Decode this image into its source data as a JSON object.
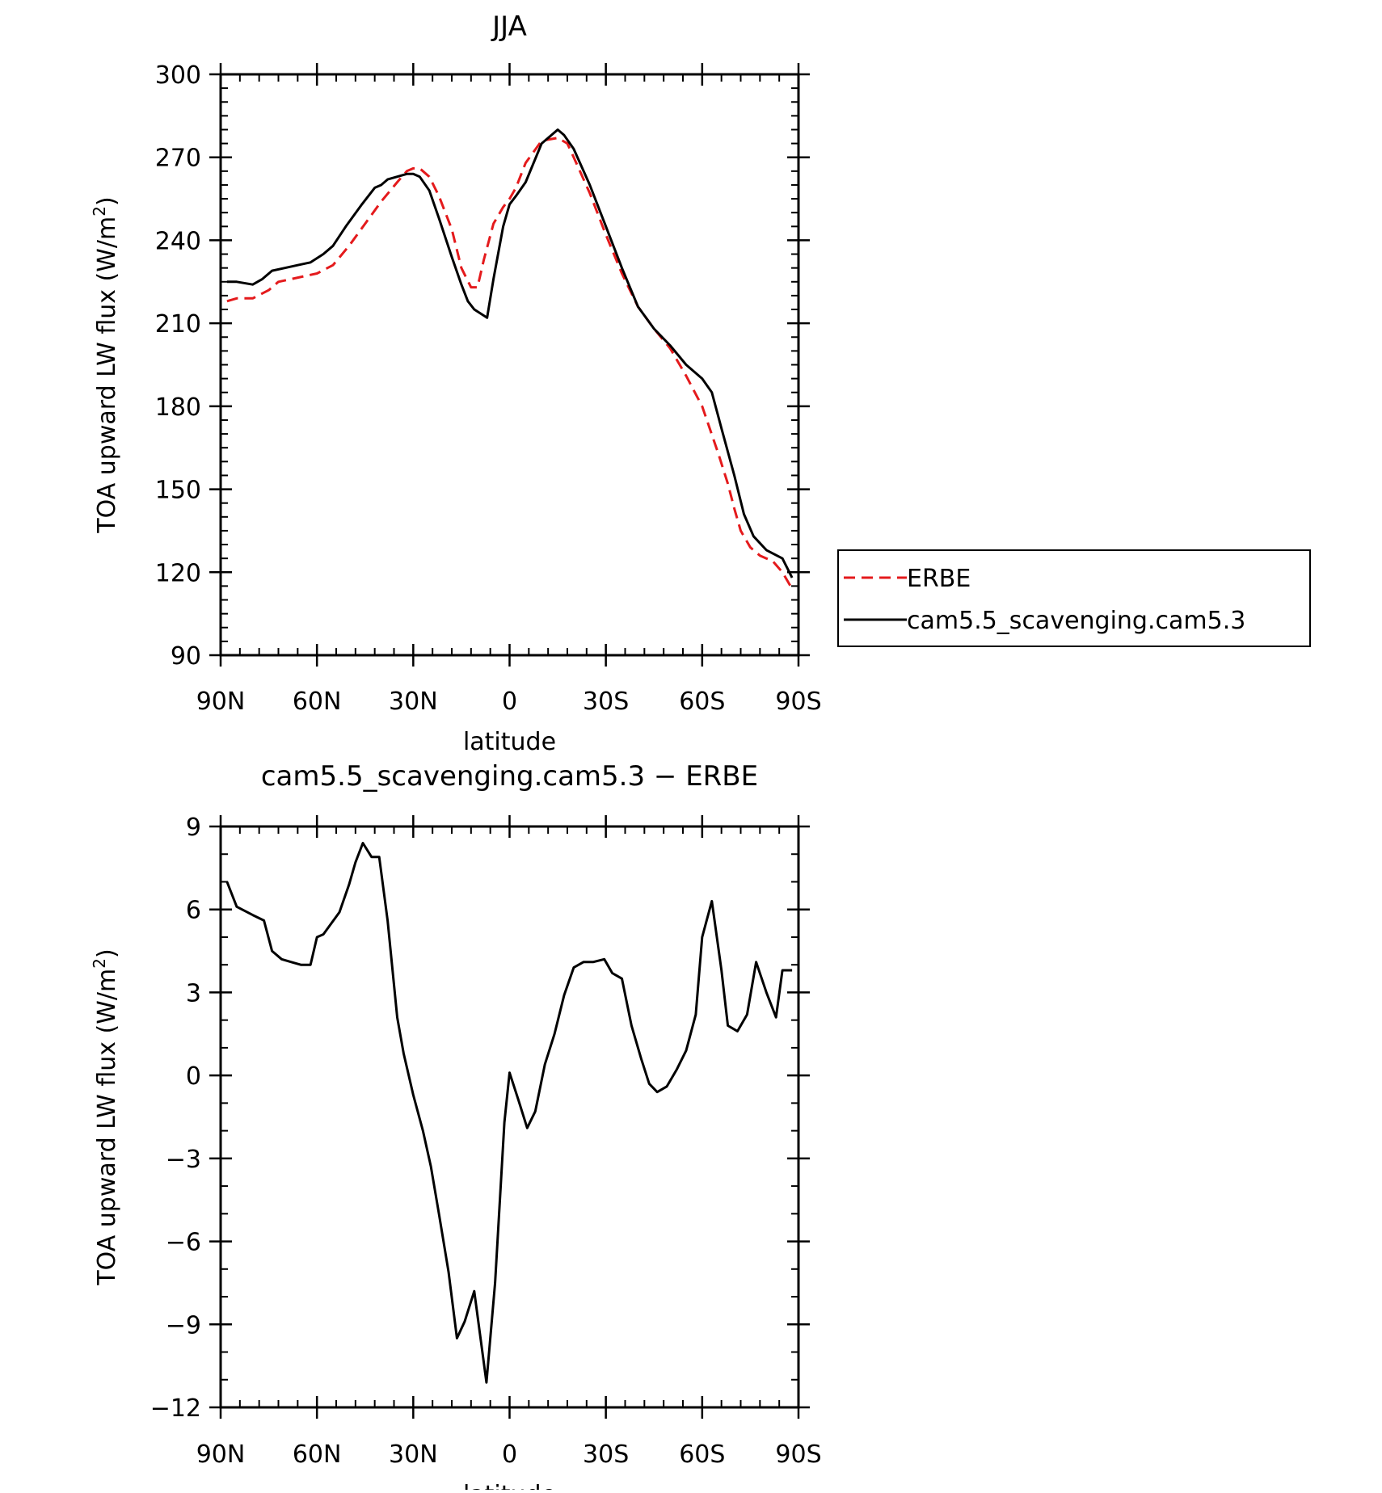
{
  "chart_data": [
    {
      "type": "line",
      "title": "JJA",
      "xlabel": "latitude",
      "ylabel": "TOA upward LW flux (W/m",
      "ylabel_sup": "2",
      "ylabel_close": ")",
      "xlim": [
        90,
        -90
      ],
      "ylim": [
        90,
        300
      ],
      "xticks": [
        90,
        60,
        30,
        0,
        -30,
        -60,
        -90
      ],
      "xtick_labels": [
        "90N",
        "60N",
        "30N",
        "0",
        "30S",
        "60S",
        "90S"
      ],
      "yticks": [
        90,
        120,
        150,
        180,
        210,
        240,
        270,
        300
      ],
      "ytick_labels": [
        "90",
        "120",
        "150",
        "180",
        "210",
        "240",
        "270",
        "300"
      ],
      "grid": false,
      "legend_position": "right",
      "series": [
        {
          "name": "ERBE",
          "color": "#e41a1c",
          "dash": "dashed",
          "x": [
            88,
            85,
            80,
            75,
            72,
            68,
            64,
            60,
            55,
            50,
            45,
            40,
            35,
            32,
            30,
            28,
            25,
            22,
            18,
            15,
            12,
            10,
            8,
            5,
            2,
            0,
            -2,
            -5,
            -10,
            -15,
            -18,
            -20,
            -25,
            -30,
            -35,
            -40,
            -45,
            -50,
            -55,
            -60,
            -65,
            -68,
            -70,
            -72,
            -75,
            -78,
            -80,
            -82,
            -85,
            -88
          ],
          "y": [
            218,
            219,
            219,
            222,
            225,
            226,
            227,
            228,
            231,
            238,
            246,
            254,
            261,
            265,
            266,
            266,
            263,
            256,
            244,
            230,
            223,
            223,
            233,
            246,
            252,
            255,
            259,
            268,
            276,
            277,
            275,
            270,
            257,
            242,
            228,
            216,
            208,
            201,
            191,
            180,
            163,
            152,
            143,
            135,
            129,
            126,
            125,
            124,
            120,
            114
          ]
        },
        {
          "name": "cam5.5_scavenging.cam5.3",
          "color": "#000000",
          "dash": "solid",
          "x": [
            88,
            85,
            80,
            77,
            74,
            70,
            66,
            62,
            58,
            55,
            51,
            46,
            42,
            40,
            38,
            35,
            32,
            30,
            28,
            25,
            22,
            18,
            15,
            13,
            11,
            7,
            5,
            2,
            0,
            -2,
            -5,
            -10,
            -15,
            -17,
            -20,
            -25,
            -30,
            -35,
            -40,
            -45,
            -50,
            -55,
            -60,
            -63,
            -66,
            -70,
            -73,
            -76,
            -80,
            -85,
            -88
          ],
          "y": [
            225,
            225,
            224,
            226,
            229,
            230,
            231,
            232,
            235,
            238,
            245,
            253,
            259,
            260,
            262,
            263,
            264,
            264,
            263,
            258,
            248,
            234,
            224,
            218,
            215,
            212,
            226,
            245,
            253,
            256,
            261,
            275,
            280,
            278,
            273,
            260,
            245,
            230,
            216,
            208,
            202,
            195,
            190,
            185,
            172,
            155,
            141,
            133,
            128,
            125,
            118
          ]
        }
      ]
    },
    {
      "type": "line",
      "title": "cam5.5_scavenging.cam5.3 − ERBE",
      "xlabel": "latitude",
      "ylabel": "TOA upward LW flux (W/m",
      "ylabel_sup": "2",
      "ylabel_close": ")",
      "xlim": [
        90,
        -90
      ],
      "ylim": [
        -12,
        9
      ],
      "xticks": [
        90,
        60,
        30,
        0,
        -30,
        -60,
        -90
      ],
      "xtick_labels": [
        "90N",
        "60N",
        "30N",
        "0",
        "30S",
        "60S",
        "90S"
      ],
      "yticks": [
        -12,
        -9,
        -6,
        -3,
        0,
        3,
        6,
        9
      ],
      "ytick_labels": [
        "−12",
        "−9",
        "−6",
        "−3",
        "0",
        "3",
        "6",
        "9"
      ],
      "grid": false,
      "series": [
        {
          "name": "",
          "color": "#000000",
          "dash": "solid",
          "x": [
            88,
            85,
            80,
            76.5,
            74,
            71,
            68,
            65,
            62,
            60,
            58,
            53,
            50,
            48,
            45.7,
            43,
            40.6,
            38,
            35,
            33,
            30,
            27,
            24.5,
            22,
            19,
            16.4,
            14,
            11,
            7.2,
            4.5,
            1.6,
            0,
            -2.8,
            -5.5,
            -8,
            -11,
            -14,
            -17,
            -20,
            -23,
            -26,
            -29.5,
            -32,
            -35,
            -38,
            -41,
            -43.5,
            -46,
            -49,
            -52,
            -55,
            -58,
            -60,
            -63,
            -66,
            -68,
            -71,
            -74,
            -76.8,
            -80,
            -83,
            -85,
            -88
          ],
          "y": [
            7,
            6.1,
            5.8,
            5.6,
            4.5,
            4.2,
            4.1,
            4.0,
            4.0,
            5.0,
            5.1,
            5.9,
            6.9,
            7.7,
            8.4,
            7.9,
            7.9,
            5.6,
            2.1,
            0.8,
            -0.7,
            -2.0,
            -3.3,
            -5.0,
            -7.1,
            -9.5,
            -8.9,
            -7.8,
            -11.1,
            -7.5,
            -1.7,
            0.1,
            -0.9,
            -1.9,
            -1.3,
            0.4,
            1.5,
            2.9,
            3.9,
            4.1,
            4.1,
            4.2,
            3.7,
            3.5,
            1.8,
            0.6,
            -0.3,
            -0.6,
            -0.4,
            0.2,
            0.9,
            2.2,
            5.0,
            6.3,
            3.8,
            1.8,
            1.6,
            2.2,
            4.1,
            3.0,
            2.1,
            3.8,
            3.8
          ]
        }
      ]
    }
  ]
}
